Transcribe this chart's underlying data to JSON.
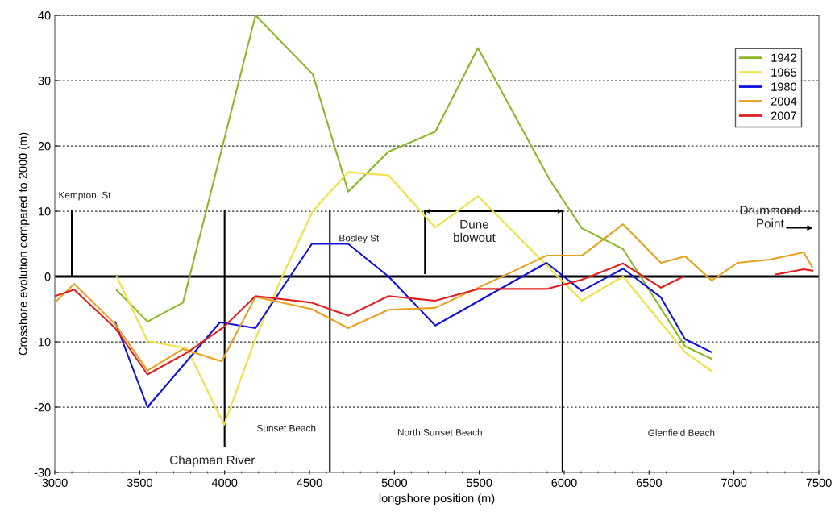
{
  "chart_data": {
    "type": "line",
    "xlabel": "longshore position (m)",
    "ylabel": "Crosshore evolution compared to 2000 (m)",
    "xlim": [
      3000,
      7500
    ],
    "xticks": [
      3000,
      3500,
      4000,
      4500,
      5000,
      5500,
      6000,
      6500,
      7000,
      7500
    ],
    "ylim": [
      -30,
      40
    ],
    "yticks": [
      -30,
      -20,
      -10,
      0,
      10,
      20,
      30,
      40
    ],
    "grid": "y",
    "legend": "top right",
    "line_style": "solid",
    "series": [
      {
        "name": "1942",
        "color": "#8cb828",
        "x": [
          3365,
          3546,
          3755,
          4182,
          4519,
          4728,
          4965,
          5241,
          5492,
          5915,
          6104,
          6347,
          6712,
          6869
        ],
        "values": [
          -2.1,
          -6.9,
          -4,
          40,
          31,
          13,
          19.1,
          22.2,
          35,
          14.8,
          7.4,
          4.2,
          -10.7,
          -12.6
        ]
      },
      {
        "name": "1965",
        "color": "#f0e040",
        "x": [
          3365,
          3546,
          3778,
          3997,
          4182,
          4339,
          4519,
          4728,
          4965,
          5241,
          5492,
          6104,
          6347,
          6712,
          6869
        ],
        "values": [
          0,
          -9.9,
          -11,
          -22.7,
          -9.5,
          0,
          10,
          16,
          15.5,
          7.5,
          12.3,
          -3.7,
          0,
          -11.6,
          -14.5
        ]
      },
      {
        "name": "1980",
        "color": "#1010e0",
        "x": [
          3356,
          3546,
          3973,
          4182,
          4514,
          4728,
          4965,
          5241,
          5896,
          6104,
          6347,
          6570,
          6712,
          6869
        ],
        "values": [
          -7,
          -20,
          -7,
          -7.9,
          5,
          5,
          0,
          -7.5,
          2.1,
          -2.2,
          1.2,
          -3.2,
          -9.6,
          -11.6
        ]
      },
      {
        "name": "2004",
        "color": "#e8a020",
        "x": [
          3000,
          3114,
          3356,
          3546,
          3755,
          3983,
          4182,
          4514,
          4728,
          4965,
          5241,
          5896,
          6104,
          6347,
          6570,
          6712,
          6869,
          7021,
          7211,
          7410,
          7462
        ],
        "values": [
          -4,
          -1.1,
          -7.3,
          -14.4,
          -11.1,
          -13,
          -3.1,
          -5,
          -7.9,
          -5.1,
          -4.8,
          3.2,
          3.2,
          8,
          2.1,
          3.1,
          -0.6,
          2.1,
          2.6,
          3.7,
          1.4
        ]
      },
      {
        "name": "2007",
        "color": "#e02020",
        "x": [
          3000,
          3114,
          3356,
          3546,
          3783,
          3997,
          4182,
          4514,
          4728,
          4965,
          5241,
          5492,
          5896,
          6104,
          6347,
          6570,
          6703,
          7000,
          7244,
          7410,
          7462
        ],
        "values": [
          -3,
          -2,
          -7.9,
          -15,
          -11.6,
          -7.7,
          -3,
          -4,
          -6,
          -3,
          -3.7,
          -1.9,
          -1.9,
          -0.5,
          2,
          -1.7,
          0,
          null,
          0.3,
          1.1,
          0.9
        ]
      },
      {
        "color": "#000000",
        "x": [
          3100,
          3100
        ],
        "values": [
          0,
          10
        ]
      },
      {
        "color": "#000000",
        "x": [
          4000,
          4000
        ],
        "values": [
          -26,
          10
        ]
      },
      {
        "color": "#000000",
        "x": [
          4620,
          4620
        ],
        "values": [
          -30,
          10
        ]
      },
      {
        "color": "#000000",
        "x": [
          5180,
          5180
        ],
        "values": [
          0.5,
          10
        ]
      },
      {
        "color": "#000000",
        "x": [
          5990,
          5990
        ],
        "values": [
          -30,
          10
        ]
      },
      {
        "color": "#000000",
        "x": [
          5180,
          5990
        ],
        "values": [
          10,
          10
        ]
      }
    ],
    "ref_lines": [
      {
        "axis": "y",
        "value": 0,
        "color": "#000000",
        "line_style": "solid"
      }
    ],
    "annotations": [
      "Kempton  St",
      "Chapman River",
      "Sunset Beach",
      "Bosley St",
      "North Sunset Beach",
      "Glenfield Beach",
      "Dune\nblowout",
      "Drummond\nPoint"
    ]
  }
}
